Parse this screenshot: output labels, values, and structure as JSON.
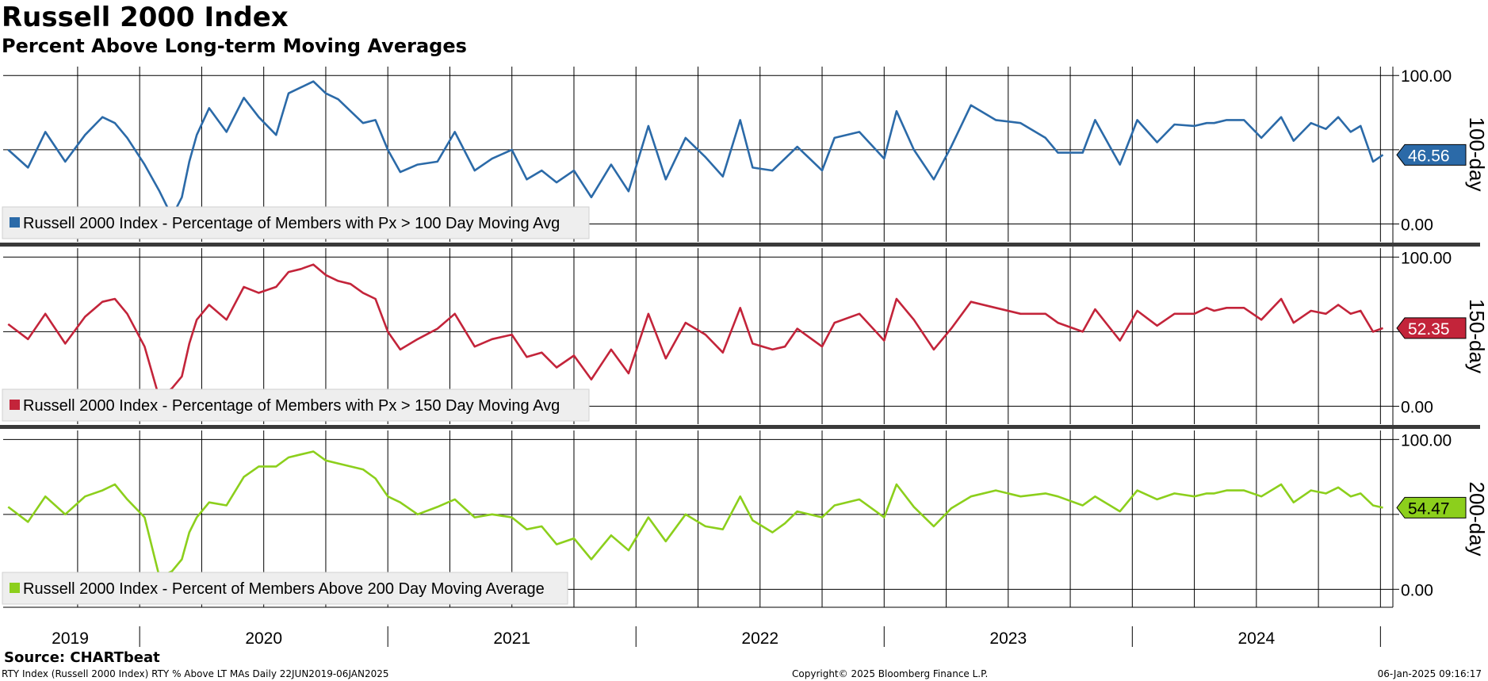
{
  "title": "Russell 2000 Index",
  "subtitle": "Percent Above Long-term Moving Averages",
  "source": "Source: CHARTbeat",
  "footer": {
    "left": "RTY Index (Russell 2000 Index) RTY % Above LT MAs  Daily 22JUN2019-06JAN2025",
    "center": "Copyright© 2025 Bloomberg Finance L.P.",
    "right": "06-Jan-2025 09:16:17"
  },
  "chart_data": [
    {
      "type": "line",
      "panel_label": "100-day",
      "y_ticks": [
        "100.00",
        "0.00"
      ],
      "ylim": [
        -12,
        106
      ],
      "legend": "Russell 2000 Index - Percentage of Members with Px > 100 Day Moving Avg",
      "last_value": "46.56",
      "color": "#2b6aa8",
      "x": [
        2019.47,
        2019.55,
        2019.62,
        2019.7,
        2019.78,
        2019.85,
        2019.9,
        2019.95,
        2020.02,
        2020.08,
        2020.13,
        2020.17,
        2020.2,
        2020.23,
        2020.28,
        2020.35,
        2020.42,
        2020.48,
        2020.55,
        2020.6,
        2020.65,
        2020.7,
        2020.75,
        2020.8,
        2020.85,
        2020.9,
        2020.95,
        2021.0,
        2021.05,
        2021.12,
        2021.2,
        2021.27,
        2021.35,
        2021.42,
        2021.5,
        2021.56,
        2021.62,
        2021.68,
        2021.75,
        2021.82,
        2021.9,
        2021.97,
        2022.05,
        2022.12,
        2022.2,
        2022.28,
        2022.35,
        2022.42,
        2022.47,
        2022.55,
        2022.6,
        2022.65,
        2022.75,
        2022.8,
        2022.9,
        2023.0,
        2023.05,
        2023.12,
        2023.2,
        2023.27,
        2023.35,
        2023.45,
        2023.55,
        2023.65,
        2023.7,
        2023.8,
        2023.85,
        2023.95,
        2024.02,
        2024.1,
        2024.17,
        2024.25,
        2024.3,
        2024.33,
        2024.38,
        2024.45,
        2024.52,
        2024.6,
        2024.65,
        2024.72,
        2024.78,
        2024.83,
        2024.88,
        2024.92,
        2024.97,
        2025.01
      ],
      "y": [
        50,
        38,
        62,
        42,
        60,
        72,
        68,
        58,
        40,
        22,
        5,
        18,
        42,
        60,
        78,
        62,
        85,
        72,
        60,
        88,
        92,
        96,
        88,
        84,
        76,
        68,
        70,
        50,
        35,
        40,
        42,
        62,
        36,
        44,
        50,
        30,
        36,
        28,
        36,
        18,
        40,
        22,
        66,
        30,
        58,
        45,
        32,
        70,
        38,
        36,
        44,
        52,
        36,
        58,
        62,
        44,
        76,
        50,
        30,
        52,
        80,
        70,
        68,
        58,
        48,
        48,
        70,
        40,
        70,
        55,
        67,
        66,
        68,
        68,
        70,
        70,
        58,
        72,
        56,
        68,
        64,
        72,
        62,
        66,
        42,
        46.56
      ]
    },
    {
      "type": "line",
      "panel_label": "150-day",
      "y_ticks": [
        "100.00",
        "0.00"
      ],
      "ylim": [
        -12,
        106
      ],
      "legend": "Russell 2000 Index - Percentage of Members with Px > 150 Day Moving Avg",
      "last_value": "52.35",
      "color": "#c3243a",
      "x": [
        2019.47,
        2019.55,
        2019.62,
        2019.7,
        2019.78,
        2019.85,
        2019.9,
        2019.95,
        2020.02,
        2020.08,
        2020.13,
        2020.17,
        2020.2,
        2020.23,
        2020.28,
        2020.35,
        2020.42,
        2020.48,
        2020.55,
        2020.6,
        2020.65,
        2020.7,
        2020.75,
        2020.8,
        2020.85,
        2020.9,
        2020.95,
        2021.0,
        2021.05,
        2021.12,
        2021.2,
        2021.27,
        2021.35,
        2021.42,
        2021.5,
        2021.56,
        2021.62,
        2021.68,
        2021.75,
        2021.82,
        2021.9,
        2021.97,
        2022.05,
        2022.12,
        2022.2,
        2022.28,
        2022.35,
        2022.42,
        2022.47,
        2022.55,
        2022.6,
        2022.65,
        2022.75,
        2022.8,
        2022.9,
        2023.0,
        2023.05,
        2023.12,
        2023.2,
        2023.27,
        2023.35,
        2023.45,
        2023.55,
        2023.65,
        2023.7,
        2023.8,
        2023.85,
        2023.95,
        2024.02,
        2024.1,
        2024.17,
        2024.25,
        2024.3,
        2024.33,
        2024.38,
        2024.45,
        2024.52,
        2024.6,
        2024.65,
        2024.72,
        2024.78,
        2024.83,
        2024.88,
        2024.92,
        2024.97,
        2025.01
      ],
      "y": [
        55,
        45,
        62,
        42,
        60,
        70,
        72,
        62,
        40,
        5,
        12,
        20,
        42,
        58,
        68,
        58,
        80,
        76,
        80,
        90,
        92,
        95,
        88,
        84,
        82,
        76,
        72,
        50,
        38,
        45,
        52,
        62,
        40,
        45,
        48,
        33,
        36,
        26,
        34,
        18,
        38,
        22,
        62,
        32,
        56,
        48,
        36,
        66,
        42,
        38,
        40,
        52,
        40,
        56,
        62,
        44,
        72,
        58,
        38,
        52,
        70,
        66,
        62,
        62,
        56,
        50,
        65,
        44,
        64,
        54,
        62,
        62,
        66,
        64,
        66,
        66,
        58,
        72,
        56,
        64,
        62,
        68,
        62,
        64,
        50,
        52.35
      ]
    },
    {
      "type": "line",
      "panel_label": "200-day",
      "y_ticks": [
        "100.00",
        "0.00"
      ],
      "ylim": [
        -12,
        106
      ],
      "legend": "Russell 2000 Index - Percent of Members Above 200 Day Moving Average",
      "last_value": "54.47",
      "color": "#8ccf1c",
      "x": [
        2019.47,
        2019.55,
        2019.62,
        2019.7,
        2019.78,
        2019.85,
        2019.9,
        2019.95,
        2020.02,
        2020.08,
        2020.13,
        2020.17,
        2020.2,
        2020.23,
        2020.28,
        2020.35,
        2020.42,
        2020.48,
        2020.55,
        2020.6,
        2020.65,
        2020.7,
        2020.75,
        2020.8,
        2020.85,
        2020.9,
        2020.95,
        2021.0,
        2021.05,
        2021.12,
        2021.2,
        2021.27,
        2021.35,
        2021.42,
        2021.5,
        2021.56,
        2021.62,
        2021.68,
        2021.75,
        2021.82,
        2021.9,
        2021.97,
        2022.05,
        2022.12,
        2022.2,
        2022.28,
        2022.35,
        2022.42,
        2022.47,
        2022.55,
        2022.6,
        2022.65,
        2022.75,
        2022.8,
        2022.9,
        2023.0,
        2023.05,
        2023.12,
        2023.2,
        2023.27,
        2023.35,
        2023.45,
        2023.55,
        2023.65,
        2023.7,
        2023.8,
        2023.85,
        2023.95,
        2024.02,
        2024.1,
        2024.17,
        2024.25,
        2024.3,
        2024.33,
        2024.38,
        2024.45,
        2024.52,
        2024.6,
        2024.65,
        2024.72,
        2024.78,
        2024.83,
        2024.88,
        2024.92,
        2024.97,
        2025.01
      ],
      "y": [
        55,
        45,
        62,
        50,
        62,
        66,
        70,
        60,
        48,
        8,
        12,
        20,
        38,
        48,
        58,
        56,
        75,
        82,
        82,
        88,
        90,
        92,
        86,
        84,
        82,
        80,
        74,
        62,
        58,
        50,
        55,
        60,
        48,
        50,
        48,
        40,
        42,
        30,
        34,
        20,
        36,
        26,
        48,
        32,
        50,
        42,
        40,
        62,
        46,
        38,
        44,
        52,
        48,
        56,
        60,
        48,
        70,
        55,
        42,
        54,
        62,
        66,
        62,
        64,
        62,
        56,
        62,
        52,
        66,
        60,
        64,
        62,
        64,
        64,
        66,
        66,
        62,
        70,
        58,
        66,
        64,
        68,
        62,
        64,
        56,
        54.47
      ]
    }
  ],
  "x_axis": {
    "year_labels": [
      "2019",
      "2020",
      "2021",
      "2022",
      "2023",
      "2024"
    ]
  }
}
